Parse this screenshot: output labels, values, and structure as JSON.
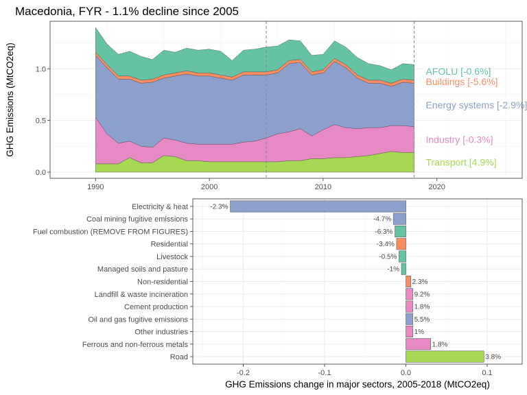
{
  "chart_data": [
    {
      "type": "area",
      "title": "Macedonia, FYR - 1.1% decline since 2005",
      "xlabel": "",
      "ylabel": "GHG Emissions (MtCO2eq)",
      "xlim": [
        1986,
        2027.5
      ],
      "ylim": [
        -0.06,
        1.46
      ],
      "x_ticks": [
        1990,
        2000,
        2010,
        2020
      ],
      "y_ticks": [
        0.0,
        0.5,
        1.0
      ],
      "y_tick_labels": [
        "0.0",
        "0.5",
        "1.0"
      ],
      "grid": true,
      "reference_lines_x": [
        2005,
        2018
      ],
      "x": [
        1990,
        1991,
        1992,
        1993,
        1994,
        1995,
        1996,
        1997,
        1998,
        1999,
        2000,
        2001,
        2002,
        2003,
        2004,
        2005,
        2006,
        2007,
        2008,
        2009,
        2010,
        2011,
        2012,
        2013,
        2014,
        2015,
        2016,
        2017,
        2018
      ],
      "series": [
        {
          "name": "Transport",
          "label": "Transport [4.9%]",
          "color": "#a6d854",
          "values": [
            0.08,
            0.08,
            0.08,
            0.14,
            0.09,
            0.09,
            0.16,
            0.15,
            0.11,
            0.11,
            0.1,
            0.1,
            0.1,
            0.1,
            0.1,
            0.1,
            0.1,
            0.11,
            0.11,
            0.13,
            0.13,
            0.14,
            0.14,
            0.15,
            0.16,
            0.18,
            0.2,
            0.19,
            0.19
          ]
        },
        {
          "name": "Industry",
          "label": "Industry [-0.3%]",
          "color": "#e78ac3",
          "values": [
            0.45,
            0.29,
            0.2,
            0.16,
            0.16,
            0.15,
            0.17,
            0.16,
            0.17,
            0.16,
            0.17,
            0.17,
            0.17,
            0.19,
            0.2,
            0.23,
            0.27,
            0.28,
            0.31,
            0.22,
            0.28,
            0.32,
            0.29,
            0.27,
            0.27,
            0.25,
            0.25,
            0.26,
            0.25
          ]
        },
        {
          "name": "Energy systems",
          "label": "Energy systems [-2.9%]",
          "color": "#8da0cb",
          "values": [
            0.6,
            0.64,
            0.62,
            0.6,
            0.61,
            0.63,
            0.58,
            0.62,
            0.67,
            0.66,
            0.66,
            0.64,
            0.62,
            0.65,
            0.64,
            0.61,
            0.59,
            0.66,
            0.64,
            0.59,
            0.55,
            0.61,
            0.58,
            0.49,
            0.43,
            0.43,
            0.38,
            0.42,
            0.42
          ]
        },
        {
          "name": "Buildings",
          "label": "Buildings [-5.6%]",
          "color": "#fc8d62",
          "values": [
            0.03,
            0.03,
            0.03,
            0.03,
            0.03,
            0.03,
            0.03,
            0.03,
            0.03,
            0.03,
            0.03,
            0.03,
            0.03,
            0.03,
            0.03,
            0.03,
            0.03,
            0.03,
            0.03,
            0.03,
            0.03,
            0.03,
            0.03,
            0.03,
            0.03,
            0.03,
            0.03,
            0.03,
            0.03
          ]
        },
        {
          "name": "AFOLU",
          "label": "AFOLU [-0.6%]",
          "color": "#66c2a5",
          "values": [
            0.24,
            0.2,
            0.21,
            0.24,
            0.23,
            0.19,
            0.24,
            0.2,
            0.22,
            0.22,
            0.23,
            0.23,
            0.16,
            0.21,
            0.22,
            0.24,
            0.23,
            0.2,
            0.18,
            0.16,
            0.15,
            0.17,
            0.17,
            0.17,
            0.16,
            0.14,
            0.13,
            0.15,
            0.15
          ]
        }
      ]
    },
    {
      "type": "bar",
      "orientation": "horizontal",
      "xlabel": "GHG Emissions change in major sectors, 2005-2018 (MtCO2eq)",
      "ylabel": "",
      "xlim": [
        -0.262,
        0.143
      ],
      "x_ticks": [
        -0.2,
        -0.1,
        0.0,
        0.1
      ],
      "x_tick_labels": [
        "-0.2",
        "-0.1",
        "0.0",
        "0.1"
      ],
      "grid": true,
      "categories": [
        "Electricity & heat",
        "Coal mining fugitive emissions",
        "Fuel combustion (REMOVE FROM FIGURES)",
        "Residential",
        "Livestock",
        "Managed soils and pasture",
        "Non-residential",
        "Landfill & waste incineration",
        "Cement production",
        "Oil and gas fugitive emissions",
        "Other industries",
        "Ferrous and non-ferrous metals",
        "Road"
      ],
      "values": [
        -0.216,
        -0.0155,
        -0.0135,
        -0.0115,
        -0.0085,
        -0.0055,
        0.006,
        0.0085,
        0.0085,
        0.0085,
        0.0085,
        0.0305,
        0.096
      ],
      "data_labels": [
        "-2.3%",
        "-4.7%",
        "-6.3%",
        "-3.4%",
        "-0.5%",
        "-1%",
        "2.3%",
        "9.2%",
        "1.8%",
        "5.5%",
        "1%",
        "1.8%",
        "3.8%"
      ],
      "colors": [
        "#8da0cb",
        "#8da0cb",
        "#66c2a5",
        "#fc8d62",
        "#66c2a5",
        "#66c2a5",
        "#fc8d62",
        "#e78ac3",
        "#e78ac3",
        "#8da0cb",
        "#e78ac3",
        "#e78ac3",
        "#a6d854"
      ]
    }
  ]
}
